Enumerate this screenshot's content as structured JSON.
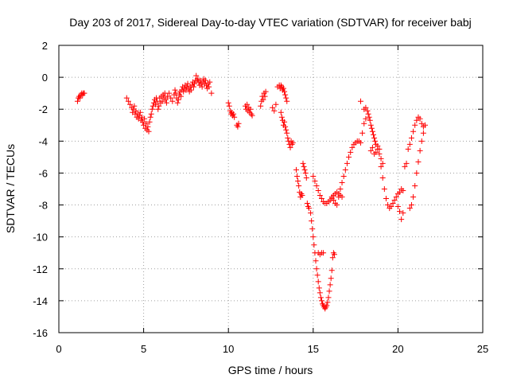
{
  "chart_data": {
    "type": "scatter",
    "title": "Day 203 of 2017, Sidereal Day-to-day VTEC variation (SDTVAR) for receiver babj",
    "xlabel": "GPS time / hours",
    "ylabel": "SDTVAR / TECUs",
    "xlim": [
      0,
      25
    ],
    "ylim": [
      -16,
      2
    ],
    "xticks": [
      0,
      5,
      10,
      15,
      20,
      25
    ],
    "yticks": [
      -16,
      -14,
      -12,
      -10,
      -8,
      -6,
      -4,
      -2,
      0,
      2
    ],
    "grid": true,
    "marker": "+",
    "color": "#ff0000",
    "series": [
      {
        "x": [
          1.1,
          1.15,
          1.2,
          1.25,
          1.3,
          1.35,
          1.4,
          1.45,
          1.5,
          4.0,
          4.1,
          4.2,
          4.3,
          4.35,
          4.4,
          4.45,
          4.5,
          4.55,
          4.6,
          4.65,
          4.7,
          4.75,
          4.8,
          4.85,
          4.9,
          4.95,
          5.0,
          5.05,
          5.1,
          5.15,
          5.2,
          5.25,
          5.3,
          5.35,
          5.4,
          5.45,
          5.5,
          5.55,
          5.6,
          5.65,
          5.7,
          5.75,
          5.8,
          5.85,
          5.9,
          5.95,
          6.0,
          6.05,
          6.1,
          6.15,
          6.2,
          6.25,
          6.3,
          6.35,
          6.4,
          6.5,
          6.6,
          6.7,
          6.8,
          6.85,
          6.9,
          6.95,
          7.0,
          7.05,
          7.1,
          7.15,
          7.2,
          7.25,
          7.3,
          7.35,
          7.4,
          7.45,
          7.5,
          7.55,
          7.6,
          7.65,
          7.7,
          7.75,
          7.8,
          7.85,
          7.9,
          7.95,
          8.0,
          8.05,
          8.1,
          8.15,
          8.2,
          8.25,
          8.3,
          8.35,
          8.4,
          8.45,
          8.5,
          8.55,
          8.6,
          8.65,
          8.7,
          8.75,
          8.8,
          8.85,
          8.9,
          9.0,
          10.0,
          10.05,
          10.1,
          10.15,
          10.2,
          10.25,
          10.3,
          10.35,
          10.5,
          10.55,
          10.6,
          11.0,
          11.05,
          11.1,
          11.15,
          11.2,
          11.25,
          11.3,
          11.35,
          11.4,
          11.9,
          11.95,
          12.0,
          12.05,
          12.1,
          12.15,
          12.2,
          12.6,
          12.7,
          12.8,
          12.9,
          13.0,
          13.05,
          13.1,
          13.15,
          13.2,
          13.25,
          13.3,
          13.35,
          13.4,
          13.45,
          13.1,
          13.15,
          13.2,
          13.25,
          13.3,
          13.35,
          13.4,
          13.45,
          13.5,
          13.55,
          13.6,
          13.65,
          13.7,
          13.75,
          13.8,
          14.0,
          14.05,
          14.1,
          14.15,
          14.2,
          14.25,
          14.3,
          14.35,
          14.4,
          14.45,
          14.5,
          14.55,
          14.6,
          14.65,
          14.7,
          14.75,
          14.85,
          14.9,
          14.95,
          15.0,
          15.05,
          15.1,
          15.15,
          15.2,
          15.25,
          15.3,
          15.35,
          15.4,
          15.45,
          15.5,
          15.55,
          15.6,
          15.65,
          15.7,
          15.75,
          15.8,
          15.85,
          15.9,
          15.95,
          16.0,
          16.05,
          16.1,
          16.15,
          16.2,
          16.25,
          15.3,
          15.4,
          15.5,
          15.6,
          15.0,
          15.1,
          15.2,
          15.3,
          15.4,
          15.5,
          15.6,
          15.7,
          15.8,
          15.9,
          16.0,
          16.1,
          16.2,
          16.3,
          16.4,
          16.5,
          16.6,
          16.7,
          16.1,
          16.2,
          16.3,
          16.4,
          16.5,
          16.6,
          16.7,
          16.8,
          16.9,
          17.0,
          17.1,
          17.2,
          17.3,
          17.4,
          17.5,
          17.6,
          17.7,
          17.8,
          17.9,
          18.0,
          18.1,
          18.1,
          18.2,
          18.25,
          18.3,
          18.35,
          18.4,
          18.45,
          18.5,
          18.55,
          18.6,
          18.65,
          18.7,
          18.8,
          18.9,
          19.0,
          19.1,
          18.4,
          18.5,
          18.6,
          18.7,
          18.8,
          18.9,
          19.0,
          19.1,
          19.2,
          19.3,
          19.4,
          19.5,
          19.6,
          19.7,
          19.8,
          19.9,
          20.0,
          20.1,
          20.2,
          20.3,
          20.0,
          20.1,
          20.2,
          20.3,
          20.4,
          20.5,
          20.6,
          20.7,
          20.8,
          20.9,
          21.0,
          21.1,
          21.2,
          21.3,
          21.4,
          21.5,
          20.7,
          20.8,
          20.9,
          21.0,
          21.1,
          21.2,
          21.3,
          21.4,
          21.5,
          21.6,
          17.8,
          18.0
        ],
        "y": [
          -1.5,
          -1.3,
          -1.2,
          -1.3,
          -1.1,
          -1.0,
          -1.1,
          -1.0,
          -1.0,
          -1.3,
          -1.5,
          -1.7,
          -1.9,
          -2.2,
          -2.0,
          -1.8,
          -2.3,
          -2.1,
          -2.5,
          -2.3,
          -2.6,
          -2.4,
          -2.2,
          -2.7,
          -2.5,
          -2.8,
          -3.0,
          -2.6,
          -3.2,
          -2.9,
          -3.3,
          -3.1,
          -3.4,
          -2.8,
          -2.5,
          -2.3,
          -2.0,
          -1.8,
          -1.6,
          -1.4,
          -1.7,
          -1.3,
          -1.5,
          -2.0,
          -1.8,
          -1.3,
          -1.6,
          -1.2,
          -1.5,
          -1.1,
          -1.3,
          -1.0,
          -1.4,
          -1.6,
          -1.2,
          -1.0,
          -1.3,
          -1.5,
          -1.1,
          -0.8,
          -1.0,
          -1.3,
          -1.6,
          -1.4,
          -1.1,
          -0.9,
          -1.2,
          -0.8,
          -0.6,
          -0.9,
          -0.7,
          -0.5,
          -0.8,
          -0.6,
          -0.4,
          -0.7,
          -0.9,
          -0.6,
          -0.8,
          -0.5,
          -0.3,
          -0.6,
          -0.4,
          -0.2,
          0.1,
          -0.2,
          -0.1,
          -0.3,
          -0.5,
          -0.2,
          -0.4,
          -0.6,
          -0.3,
          -0.1,
          -0.4,
          -0.2,
          -0.5,
          -0.7,
          -0.4,
          -0.6,
          -0.3,
          -1.0,
          -1.6,
          -1.8,
          -2.1,
          -2.3,
          -2.2,
          -2.4,
          -2.3,
          -2.5,
          -3.0,
          -3.1,
          -2.9,
          -1.8,
          -2.0,
          -1.7,
          -2.1,
          -1.9,
          -2.2,
          -2.0,
          -2.3,
          -2.4,
          -1.8,
          -1.5,
          -1.2,
          -1.4,
          -1.0,
          -1.2,
          -0.9,
          -1.9,
          -2.1,
          -1.7,
          -0.6,
          -0.5,
          -0.7,
          -0.5,
          -0.6,
          -0.8,
          -0.7,
          -0.9,
          -1.1,
          -1.3,
          -1.5,
          -2.2,
          -2.5,
          -2.7,
          -3.0,
          -2.8,
          -3.1,
          -3.3,
          -3.5,
          -3.8,
          -4.0,
          -4.2,
          -4.4,
          -4.0,
          -4.2,
          -4.1,
          -5.8,
          -6.2,
          -6.5,
          -6.8,
          -7.2,
          -7.5,
          -7.3,
          -7.4,
          -5.4,
          -5.6,
          -5.8,
          -6.0,
          -6.3,
          -7.9,
          -8.1,
          -8.2,
          -8.5,
          -9.0,
          -9.5,
          -10.0,
          -10.5,
          -11.0,
          -11.5,
          -12.0,
          -12.4,
          -12.8,
          -13.2,
          -13.5,
          -13.8,
          -14.0,
          -14.2,
          -14.3,
          -14.4,
          -14.5,
          -14.4,
          -14.3,
          -14.1,
          -13.8,
          -13.4,
          -13.0,
          -12.6,
          -12.1,
          -11.3,
          -11.0,
          -11.1,
          -11.0,
          -11.1,
          -11.0,
          -11.0,
          -6.2,
          -6.5,
          -6.8,
          -7.1,
          -7.4,
          -7.6,
          -7.8,
          -7.9,
          -7.9,
          -7.8,
          -7.7,
          -7.5,
          -7.4,
          -7.3,
          -7.2,
          -7.3,
          -7.4,
          -7.5,
          -7.6,
          -7.7,
          -7.9,
          -8.0,
          -7.5,
          -7.0,
          -6.6,
          -6.2,
          -5.8,
          -5.4,
          -5.0,
          -4.7,
          -4.4,
          -4.2,
          -4.1,
          -4.0,
          -4.0,
          -4.1,
          -3.5,
          -2.9,
          -2.6,
          -1.9,
          -2.1,
          -2.3,
          -2.5,
          -2.7,
          -3.0,
          -3.2,
          -3.4,
          -3.6,
          -3.8,
          -4.0,
          -4.2,
          -4.5,
          -4.8,
          -5.1,
          -5.4,
          -4.6,
          -4.4,
          -4.8,
          -4.7,
          -4.3,
          -4.5,
          -5.6,
          -6.3,
          -7.0,
          -7.6,
          -8.0,
          -8.2,
          -8.1,
          -7.9,
          -7.7,
          -7.5,
          -7.3,
          -7.2,
          -7.0,
          -7.1,
          -8.1,
          -8.4,
          -8.9,
          -8.5,
          -5.6,
          -5.4,
          -4.5,
          -4.2,
          -3.8,
          -3.4,
          -3.0,
          -2.7,
          -2.5,
          -2.6,
          -2.9,
          -3.1,
          -8.2,
          -8.0,
          -7.5,
          -6.8,
          -6.0,
          -5.3,
          -4.6,
          -4.0,
          -3.5,
          -3.0,
          -1.5,
          -2.0
        ]
      }
    ]
  }
}
